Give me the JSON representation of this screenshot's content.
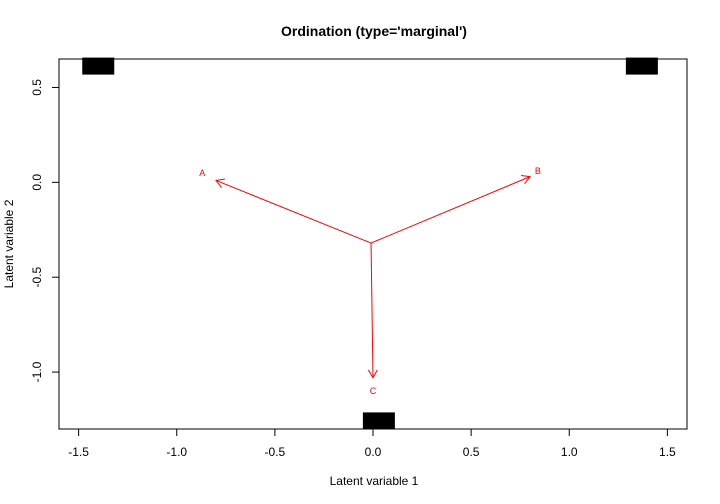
{
  "chart_data": {
    "type": "scatter",
    "title": "Ordination (type='marginal')",
    "xlabel": "Latent variable 1",
    "ylabel": "Latent variable 2",
    "xlim": [
      -1.6,
      1.6
    ],
    "ylim": [
      -1.3,
      0.65
    ],
    "xticks": [
      -1.5,
      -1.0,
      -0.5,
      0.0,
      0.5,
      1.0,
      1.5
    ],
    "yticks": [
      -1.0,
      -0.5,
      0.0,
      0.5
    ],
    "grid": false,
    "color": "#ff0000",
    "points": [
      {
        "x": -1.4,
        "y": 0.61
      },
      {
        "x": 1.37,
        "y": 0.61
      },
      {
        "x": 0.03,
        "y": -1.26
      }
    ],
    "arrows": [
      {
        "label": "A",
        "x0": -0.01,
        "y0": -0.32,
        "x1": -0.8,
        "y1": 0.01,
        "lx": -0.87,
        "ly": 0.05
      },
      {
        "label": "B",
        "x0": -0.01,
        "y0": -0.32,
        "x1": 0.8,
        "y1": 0.03,
        "lx": 0.84,
        "ly": 0.06
      },
      {
        "label": "C",
        "x0": -0.01,
        "y0": -0.32,
        "x1": 0.0,
        "y1": -1.03,
        "lx": 0.0,
        "ly": -1.1
      }
    ]
  }
}
